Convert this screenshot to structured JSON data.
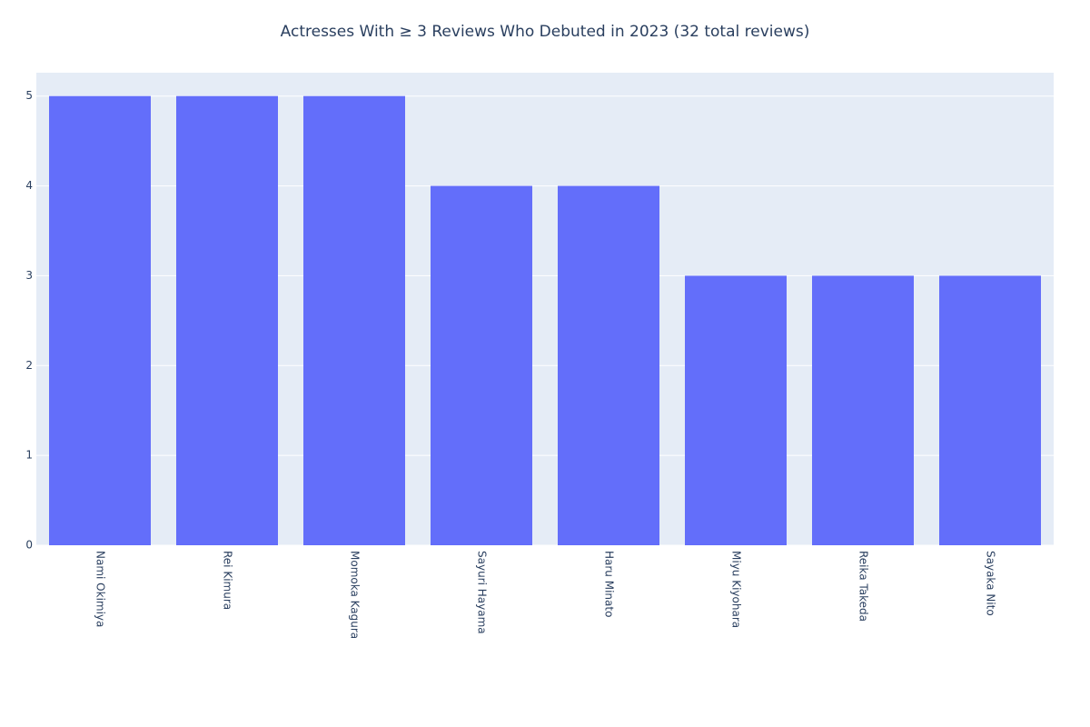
{
  "chart_data": {
    "type": "bar",
    "title": "Actresses With ≥ 3 Reviews Who Debuted in 2023 (32 total reviews)",
    "categories": [
      "Nami Okimiya",
      "Rei Kimura",
      "Momoka Kagura",
      "Sayuri Hayama",
      "Haru Minato",
      "Miyu Kiyohara",
      "Reika Takeda",
      "Sayaka Nito"
    ],
    "values": [
      5,
      5,
      5,
      4,
      4,
      3,
      3,
      3
    ],
    "color": "#636efa",
    "ylim": [
      0,
      5.26
    ],
    "yticks": [
      0,
      1,
      2,
      3,
      4,
      5
    ],
    "grid": true
  }
}
